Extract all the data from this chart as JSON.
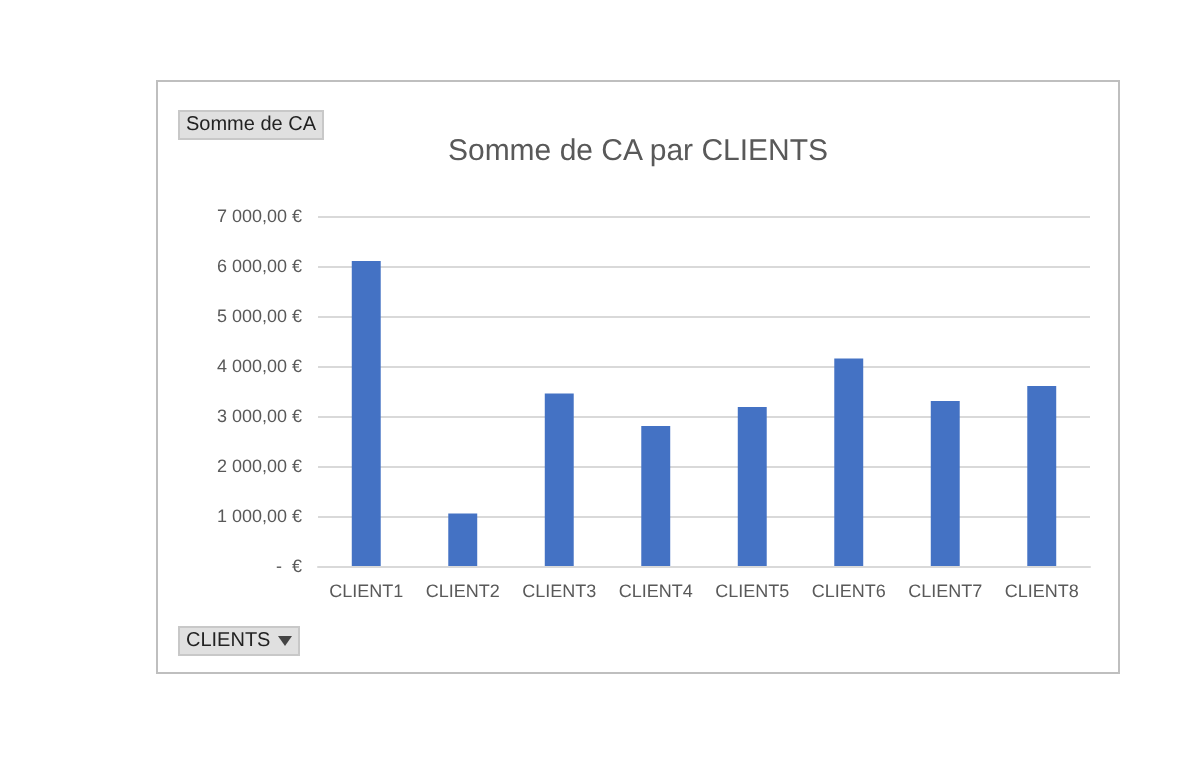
{
  "chart_data": {
    "type": "bar",
    "title": "Somme de CA par CLIENTS",
    "categories": [
      "CLIENT1",
      "CLIENT2",
      "CLIENT3",
      "CLIENT4",
      "CLIENT5",
      "CLIENT6",
      "CLIENT7",
      "CLIENT8"
    ],
    "values": [
      6100,
      1050,
      3450,
      2800,
      3180,
      4150,
      3300,
      3600
    ],
    "color": "#4472c4",
    "ylim": [
      0,
      7000
    ],
    "yticks": [
      {
        "value": 0,
        "label": "-  €"
      },
      {
        "value": 1000,
        "label": "1 000,00 €"
      },
      {
        "value": 2000,
        "label": "2 000,00 €"
      },
      {
        "value": 3000,
        "label": "3 000,00 €"
      },
      {
        "value": 4000,
        "label": "4 000,00 €"
      },
      {
        "value": 5000,
        "label": "5 000,00 €"
      },
      {
        "value": 6000,
        "label": "6 000,00 €"
      },
      {
        "value": 7000,
        "label": "7 000,00 €"
      }
    ],
    "grid": "y",
    "annotations": [
      "Somme de CA",
      "CLIENTS"
    ]
  }
}
